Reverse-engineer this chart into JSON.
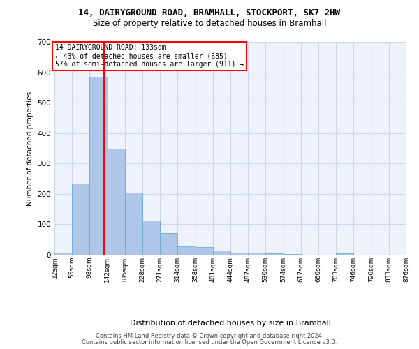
{
  "title1": "14, DAIRYGROUND ROAD, BRAMHALL, STOCKPORT, SK7 2HW",
  "title2": "Size of property relative to detached houses in Bramhall",
  "xlabel": "Distribution of detached houses by size in Bramhall",
  "ylabel": "Number of detached properties",
  "bar_color": "#aec6e8",
  "bar_edge_color": "#6aaad4",
  "grid_color": "#ccd8ee",
  "bg_color": "#eef2fa",
  "property_size": 133,
  "property_line_color": "red",
  "annotation_text": "14 DAIRYGROUND ROAD: 133sqm\n← 43% of detached houses are smaller (685)\n57% of semi-detached houses are larger (911) →",
  "annotation_box_color": "white",
  "annotation_box_edge_color": "red",
  "footer1": "Contains HM Land Registry data © Crown copyright and database right 2024.",
  "footer2": "Contains public sector information licensed under the Open Government Licence v3.0.",
  "bins": [
    12,
    55,
    98,
    142,
    185,
    228,
    271,
    314,
    358,
    401,
    444,
    487,
    530,
    574,
    617,
    660,
    703,
    746,
    790,
    833,
    876
  ],
  "bar_heights": [
    6,
    234,
    585,
    350,
    204,
    113,
    72,
    28,
    25,
    14,
    8,
    6,
    5,
    2,
    0,
    0,
    4,
    0,
    0,
    0
  ],
  "ylim": [
    0,
    700
  ],
  "yticks": [
    0,
    100,
    200,
    300,
    400,
    500,
    600,
    700
  ]
}
